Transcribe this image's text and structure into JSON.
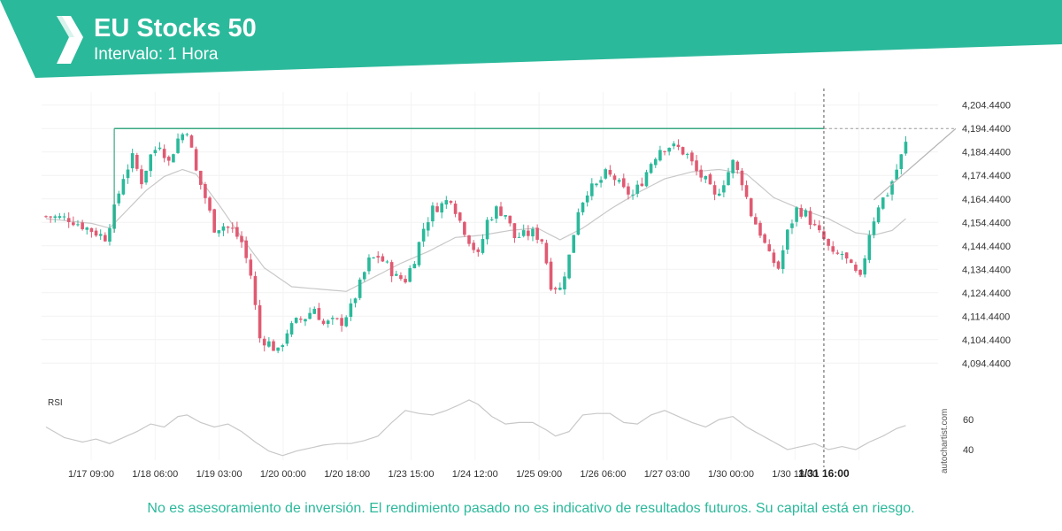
{
  "header": {
    "title": "EU Stocks 50",
    "subtitle": "Intervalo: 1 Hora"
  },
  "disclaimer": "No es asesoramiento de inversión. El rendimiento pasado no es indicativo de resultados futuros. Su capital está en riesgo.",
  "watermark": "autochartist.com",
  "colors": {
    "brand": "#2bb99b",
    "up": "#2bb99b",
    "down": "#e05a72",
    "ma": "#c8c8c8",
    "level": "#3aa882"
  },
  "chart_data": {
    "type": "candlestick",
    "ylim": [
      4087.0,
      4210.0
    ],
    "y_ticks": [
      "4,204.4400",
      "4,194.4400",
      "4,184.4400",
      "4,174.4400",
      "4,164.4400",
      "4,154.4400",
      "4,144.4400",
      "4,134.4400",
      "4,124.4400",
      "4,114.4400",
      "4,104.4400",
      "4,094.4400"
    ],
    "x_ticks": [
      "1/17 09:00",
      "1/18 06:00",
      "1/19 03:00",
      "1/20 00:00",
      "1/20 18:00",
      "1/23 15:00",
      "1/24 12:00",
      "1/25 09:00",
      "1/26 06:00",
      "1/27 03:00",
      "1/30 00:00",
      "1/30 18:00",
      "1/31 16:00"
    ],
    "highlighted_x_tick": "1/31 16:00",
    "resistance_level": 4194.44,
    "close_path": [
      [
        0,
        4157
      ],
      [
        5,
        4156
      ],
      [
        8,
        4153
      ],
      [
        11,
        4150
      ],
      [
        13,
        4148
      ],
      [
        15,
        4160
      ],
      [
        17,
        4174
      ],
      [
        19,
        4182
      ],
      [
        21,
        4172
      ],
      [
        23,
        4183
      ],
      [
        25,
        4188
      ],
      [
        27,
        4180
      ],
      [
        29,
        4190
      ],
      [
        31,
        4194
      ],
      [
        33,
        4176
      ],
      [
        35,
        4165
      ],
      [
        37,
        4152
      ],
      [
        39,
        4153
      ],
      [
        41,
        4151
      ],
      [
        43,
        4146
      ],
      [
        45,
        4132
      ],
      [
        47,
        4105
      ],
      [
        49,
        4103
      ],
      [
        51,
        4099
      ],
      [
        53,
        4108
      ],
      [
        55,
        4112
      ],
      [
        57,
        4114
      ],
      [
        59,
        4118
      ],
      [
        61,
        4111
      ],
      [
        63,
        4112
      ],
      [
        65,
        4112
      ],
      [
        67,
        4118
      ],
      [
        69,
        4128
      ],
      [
        71,
        4138
      ],
      [
        73,
        4140
      ],
      [
        75,
        4136
      ],
      [
        77,
        4131
      ],
      [
        79,
        4130
      ],
      [
        81,
        4139
      ],
      [
        83,
        4152
      ],
      [
        85,
        4160
      ],
      [
        87,
        4162
      ],
      [
        89,
        4165
      ],
      [
        91,
        4155
      ],
      [
        93,
        4147
      ],
      [
        95,
        4140
      ],
      [
        97,
        4155
      ],
      [
        99,
        4160
      ],
      [
        101,
        4158
      ],
      [
        103,
        4148
      ],
      [
        105,
        4149
      ],
      [
        107,
        4150
      ],
      [
        109,
        4147
      ],
      [
        111,
        4128
      ],
      [
        113,
        4126
      ],
      [
        115,
        4140
      ],
      [
        117,
        4160
      ],
      [
        119,
        4168
      ],
      [
        121,
        4170
      ],
      [
        123,
        4175
      ],
      [
        125,
        4173
      ],
      [
        127,
        4168
      ],
      [
        129,
        4166
      ],
      [
        131,
        4172
      ],
      [
        133,
        4180
      ],
      [
        135,
        4186
      ],
      [
        137,
        4187
      ],
      [
        139,
        4186
      ],
      [
        141,
        4183
      ],
      [
        143,
        4176
      ],
      [
        145,
        4172
      ],
      [
        147,
        4165
      ],
      [
        149,
        4172
      ],
      [
        151,
        4180
      ],
      [
        153,
        4172
      ],
      [
        155,
        4158
      ],
      [
        157,
        4150
      ],
      [
        159,
        4140
      ],
      [
        161,
        4135
      ],
      [
        163,
        4150
      ],
      [
        165,
        4160
      ],
      [
        167,
        4158
      ],
      [
        169,
        4152
      ],
      [
        171,
        4147
      ],
      [
        173,
        4140
      ],
      [
        175,
        4141
      ],
      [
        177,
        4135
      ],
      [
        179,
        4130
      ],
      [
        181,
        4150
      ],
      [
        183,
        4162
      ],
      [
        185,
        4167
      ],
      [
        187,
        4177
      ],
      [
        189,
        4188
      ]
    ],
    "moving_average": [
      [
        0,
        4156
      ],
      [
        10,
        4154
      ],
      [
        14,
        4152
      ],
      [
        18,
        4160
      ],
      [
        22,
        4168
      ],
      [
        26,
        4174
      ],
      [
        30,
        4177
      ],
      [
        33,
        4175
      ],
      [
        38,
        4162
      ],
      [
        43,
        4148
      ],
      [
        48,
        4135
      ],
      [
        54,
        4127
      ],
      [
        60,
        4126
      ],
      [
        66,
        4125
      ],
      [
        72,
        4131
      ],
      [
        78,
        4137
      ],
      [
        84,
        4142
      ],
      [
        90,
        4148
      ],
      [
        96,
        4149
      ],
      [
        102,
        4151
      ],
      [
        108,
        4152
      ],
      [
        113,
        4147
      ],
      [
        118,
        4152
      ],
      [
        124,
        4160
      ],
      [
        130,
        4167
      ],
      [
        136,
        4173
      ],
      [
        142,
        4176
      ],
      [
        148,
        4177
      ],
      [
        154,
        4175
      ],
      [
        160,
        4165
      ],
      [
        166,
        4160
      ],
      [
        172,
        4156
      ],
      [
        178,
        4150
      ],
      [
        182,
        4149
      ],
      [
        186,
        4151
      ],
      [
        189,
        4156
      ]
    ],
    "projection_line": [
      [
        4164.0,
        4194.44
      ]
    ],
    "rsi": {
      "label": "RSI",
      "y_ticks": [
        60,
        40
      ],
      "ylim": [
        30,
        80
      ],
      "values": [
        [
          0,
          55
        ],
        [
          4,
          48
        ],
        [
          8,
          45
        ],
        [
          11,
          47
        ],
        [
          14,
          44
        ],
        [
          17,
          48
        ],
        [
          20,
          52
        ],
        [
          23,
          57
        ],
        [
          26,
          55
        ],
        [
          29,
          62
        ],
        [
          31,
          63
        ],
        [
          34,
          58
        ],
        [
          37,
          55
        ],
        [
          40,
          57
        ],
        [
          43,
          52
        ],
        [
          46,
          45
        ],
        [
          49,
          39
        ],
        [
          52,
          36
        ],
        [
          55,
          39
        ],
        [
          58,
          41
        ],
        [
          61,
          43
        ],
        [
          64,
          44
        ],
        [
          67,
          44
        ],
        [
          70,
          46
        ],
        [
          73,
          49
        ],
        [
          76,
          58
        ],
        [
          79,
          66
        ],
        [
          82,
          64
        ],
        [
          85,
          63
        ],
        [
          88,
          66
        ],
        [
          91,
          70
        ],
        [
          93,
          73
        ],
        [
          95,
          70
        ],
        [
          98,
          62
        ],
        [
          101,
          57
        ],
        [
          104,
          58
        ],
        [
          107,
          58
        ],
        [
          110,
          53
        ],
        [
          112,
          49
        ],
        [
          115,
          52
        ],
        [
          118,
          63
        ],
        [
          121,
          64
        ],
        [
          124,
          64
        ],
        [
          127,
          58
        ],
        [
          130,
          57
        ],
        [
          133,
          63
        ],
        [
          136,
          66
        ],
        [
          139,
          62
        ],
        [
          142,
          58
        ],
        [
          145,
          55
        ],
        [
          148,
          60
        ],
        [
          151,
          62
        ],
        [
          154,
          55
        ],
        [
          157,
          50
        ],
        [
          160,
          45
        ],
        [
          163,
          40
        ],
        [
          166,
          42
        ],
        [
          169,
          44
        ],
        [
          172,
          40
        ],
        [
          175,
          42
        ],
        [
          178,
          40
        ],
        [
          181,
          45
        ],
        [
          184,
          49
        ],
        [
          187,
          54
        ],
        [
          189,
          56
        ]
      ]
    }
  }
}
